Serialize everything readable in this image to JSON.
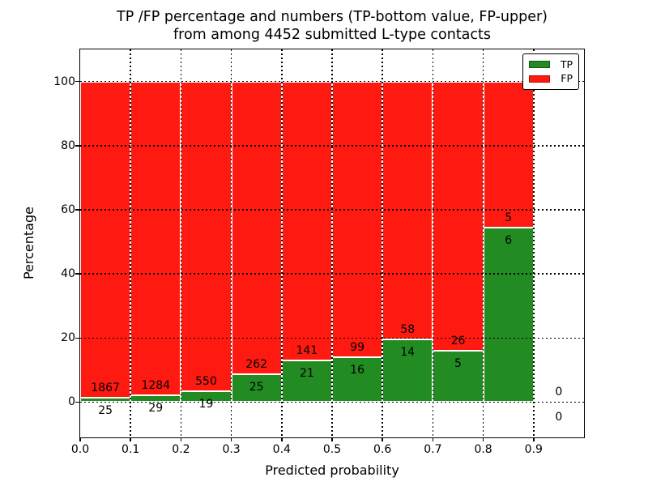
{
  "figure": {
    "title_line1": "TP /FP percentage and numbers (TP-bottom value, FP-upper)",
    "title_line2": "from among 4452 submitted L-type contacts",
    "xlabel": "Predicted probability",
    "ylabel": "Percentage"
  },
  "chart_data": {
    "type": "bar",
    "subtype": "stacked-percentage-histogram",
    "title": "TP /FP percentage and numbers (TP-bottom value, FP-upper) from among 4452 submitted L-type contacts",
    "xlabel": "Predicted probability",
    "ylabel": "Percentage",
    "xlim": [
      0.0,
      1.0
    ],
    "ylim": [
      -11,
      110
    ],
    "bin_width": 0.1,
    "xtick_labels": [
      "0.0",
      "0.1",
      "0.2",
      "0.3",
      "0.4",
      "0.5",
      "0.6",
      "0.7",
      "0.8",
      "0.9"
    ],
    "ytick_values": [
      0,
      20,
      40,
      60,
      80,
      100
    ],
    "bins": [
      "0.0-0.1",
      "0.1-0.2",
      "0.2-0.3",
      "0.3-0.4",
      "0.4-0.5",
      "0.5-0.6",
      "0.6-0.7",
      "0.7-0.8",
      "0.8-0.9",
      "0.9-1.0"
    ],
    "series": [
      {
        "name": "TP",
        "color": "#228b22",
        "edge_color": "#145914",
        "values": [
          25,
          29,
          19,
          25,
          21,
          16,
          14,
          5,
          6,
          0
        ]
      },
      {
        "name": "FP",
        "color": "#fe1a10",
        "edge_color": "#b30d06",
        "values": [
          1867,
          1284,
          550,
          262,
          141,
          99,
          58,
          26,
          5,
          0
        ]
      }
    ],
    "tp_percent_per_bin": [
      1.32,
      2.21,
      3.34,
      8.71,
      12.96,
      13.91,
      19.44,
      16.13,
      54.55,
      null
    ],
    "total_contacts": 4452,
    "legend_position": "upper right",
    "grid": "dotted",
    "bar_edge_color": "#ffffff"
  }
}
